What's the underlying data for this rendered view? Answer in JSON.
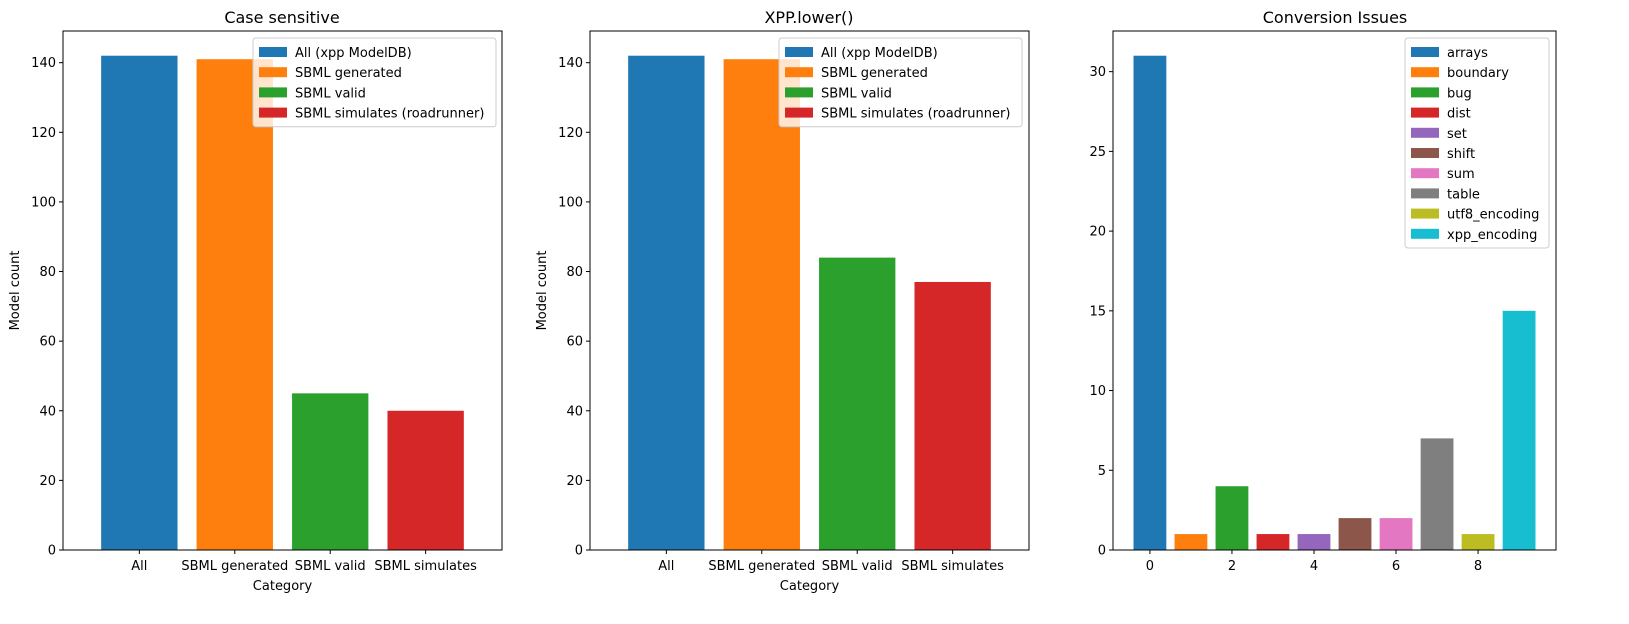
{
  "chart_data": [
    {
      "type": "bar",
      "title": "Case sensitive",
      "xlabel": "Category",
      "ylabel": "Model count",
      "categories": [
        "All",
        "SBML generated",
        "SBML valid",
        "SBML simulates"
      ],
      "values": [
        142,
        141,
        45,
        40
      ],
      "colors": [
        "#1f77b4",
        "#ff7f0e",
        "#2ca02c",
        "#d62728"
      ],
      "legend": [
        "All (xpp ModelDB)",
        "SBML generated",
        "SBML valid",
        "SBML simulates (roadrunner)"
      ],
      "legend_position": "top-right",
      "ylim": [
        0,
        149.1
      ],
      "yticks": [
        0,
        20,
        40,
        60,
        80,
        100,
        120,
        140
      ],
      "grid": false
    },
    {
      "type": "bar",
      "title": "XPP.lower()",
      "xlabel": "Category",
      "ylabel": "Model count",
      "categories": [
        "All",
        "SBML generated",
        "SBML valid",
        "SBML simulates"
      ],
      "values": [
        142,
        141,
        84,
        77
      ],
      "colors": [
        "#1f77b4",
        "#ff7f0e",
        "#2ca02c",
        "#d62728"
      ],
      "legend": [
        "All (xpp ModelDB)",
        "SBML generated",
        "SBML valid",
        "SBML simulates (roadrunner)"
      ],
      "legend_position": "top-right",
      "ylim": [
        0,
        149.1
      ],
      "yticks": [
        0,
        20,
        40,
        60,
        80,
        100,
        120,
        140
      ],
      "grid": false
    },
    {
      "type": "bar",
      "title": "Conversion Issues",
      "xlabel": "",
      "ylabel": "",
      "x": [
        0,
        1,
        2,
        3,
        4,
        5,
        6,
        7,
        8,
        9
      ],
      "values": [
        31,
        1,
        4,
        1,
        1,
        2,
        2,
        7,
        1,
        15
      ],
      "colors": [
        "#1f77b4",
        "#ff7f0e",
        "#2ca02c",
        "#d62728",
        "#9467bd",
        "#8c564b",
        "#e377c2",
        "#7f7f7f",
        "#bcbd22",
        "#17becf"
      ],
      "legend": [
        "arrays",
        "boundary",
        "bug",
        "dist",
        "set",
        "shift",
        "sum",
        "table",
        "utf8_encoding",
        "xpp_encoding"
      ],
      "legend_position": "top-right",
      "xticks": [
        0,
        2,
        4,
        6,
        8
      ],
      "xlim": [
        -0.9,
        9.9
      ],
      "ylim": [
        0,
        32.55
      ],
      "yticks": [
        0,
        5,
        10,
        15,
        20,
        25,
        30
      ],
      "grid": false
    }
  ]
}
